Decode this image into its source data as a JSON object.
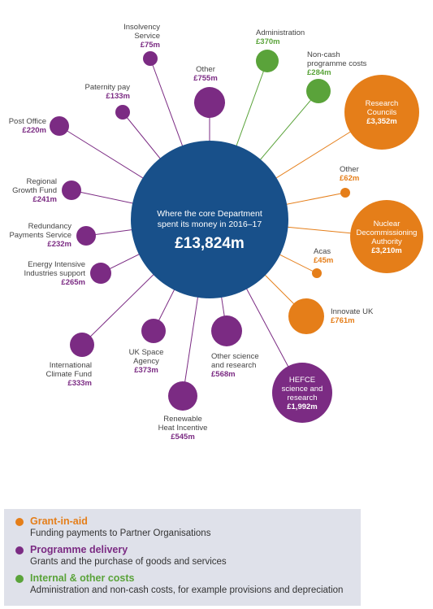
{
  "colors": {
    "core": "#18508a",
    "grant": "#e57e19",
    "programme": "#7b2b83",
    "internal": "#5aa33a",
    "label_text": "#444444"
  },
  "center": {
    "lines": [
      "Where the core Department",
      "spent its money in 2016–17"
    ],
    "total": "£13,824m"
  },
  "nodes": [
    {
      "id": "insolvency-service",
      "category": "programme",
      "name_lines": [
        "Insolvency",
        "Service"
      ],
      "value": "£75m"
    },
    {
      "id": "other-programme",
      "category": "programme",
      "name_lines": [
        "Other"
      ],
      "value": "£755m"
    },
    {
      "id": "paternity-pay",
      "category": "programme",
      "name_lines": [
        "Paternity pay"
      ],
      "value": "£133m"
    },
    {
      "id": "post-office",
      "category": "programme",
      "name_lines": [
        "Post Office"
      ],
      "value": "£220m"
    },
    {
      "id": "regional-growth-fund",
      "category": "programme",
      "name_lines": [
        "Regional",
        "Growth Fund"
      ],
      "value": "£241m"
    },
    {
      "id": "redundancy-payments-service",
      "category": "programme",
      "name_lines": [
        "Redundancy",
        "Payments Service"
      ],
      "value": "£232m"
    },
    {
      "id": "energy-intensive-industries-support",
      "category": "programme",
      "name_lines": [
        "Energy Intensive",
        "Industries support"
      ],
      "value": "£265m"
    },
    {
      "id": "international-climate-fund",
      "category": "programme",
      "name_lines": [
        "International",
        "Climate Fund"
      ],
      "value": "£333m"
    },
    {
      "id": "uk-space-agency",
      "category": "programme",
      "name_lines": [
        "UK Space",
        "Agency"
      ],
      "value": "£373m"
    },
    {
      "id": "renewable-heat-incentive",
      "category": "programme",
      "name_lines": [
        "Renewable",
        "Heat Incentive"
      ],
      "value": "£545m"
    },
    {
      "id": "other-science-and-research",
      "category": "programme",
      "name_lines": [
        "Other science",
        "and research"
      ],
      "value": "£568m"
    },
    {
      "id": "hefce-science-and-research",
      "category": "programme",
      "name_lines": [
        "HEFCE",
        "science and",
        "research"
      ],
      "value": "£1,992m"
    },
    {
      "id": "administration",
      "category": "internal",
      "name_lines": [
        "Administration"
      ],
      "value": "£370m"
    },
    {
      "id": "non-cash-programme-costs",
      "category": "internal",
      "name_lines": [
        "Non-cash",
        "programme costs"
      ],
      "value": "£284m"
    },
    {
      "id": "research-councils",
      "category": "grant",
      "name_lines": [
        "Research",
        "Councils"
      ],
      "value": "£3,352m"
    },
    {
      "id": "other-grant",
      "category": "grant",
      "name_lines": [
        "Other"
      ],
      "value": "£62m"
    },
    {
      "id": "nuclear-decommissioning-authority",
      "category": "grant",
      "name_lines": [
        "Nuclear",
        "Decommissioning",
        "Authority"
      ],
      "value": "£3,210m"
    },
    {
      "id": "acas",
      "category": "grant",
      "name_lines": [
        "Acas"
      ],
      "value": "£45m"
    },
    {
      "id": "innovate-uk",
      "category": "grant",
      "name_lines": [
        "Innovate UK"
      ],
      "value": "£761m"
    }
  ],
  "legend": [
    {
      "category": "grant",
      "icon": "orange-dot-icon",
      "title": "Grant-in-aid",
      "description": "Funding payments to Partner Organisations"
    },
    {
      "category": "programme",
      "icon": "purple-dot-icon",
      "title": "Programme delivery",
      "description": "Grants and the purchase of goods and services"
    },
    {
      "category": "internal",
      "icon": "green-dot-icon",
      "title": "Internal & other costs",
      "description": "Administration and non-cash costs, for example provisions and depreciation"
    }
  ]
}
